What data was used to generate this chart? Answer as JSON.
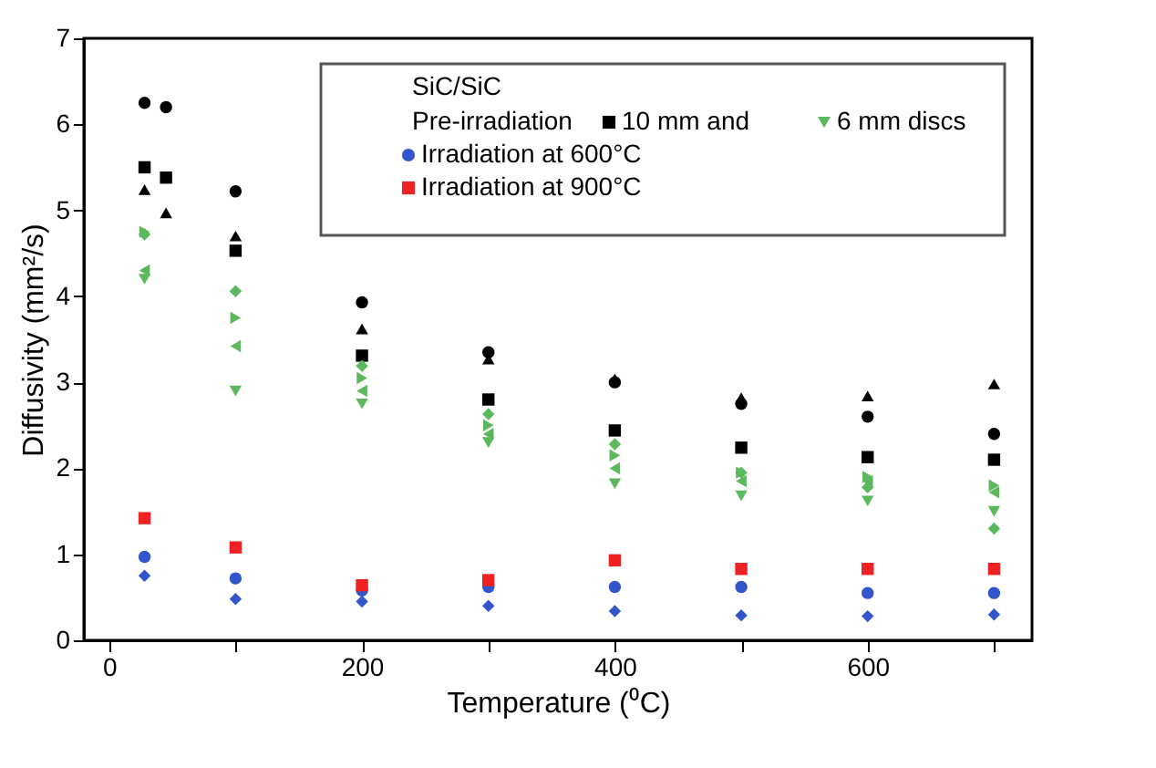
{
  "chart_data": {
    "type": "scatter",
    "legend_title": "SiC/SiC",
    "annotations": [
      "Pre-irradiation"
    ],
    "xlabel": "Temperature (⁰C)",
    "ylabel": "Diffusivity (mm²/s)",
    "xlim": [
      -20,
      730
    ],
    "ylim": [
      0,
      7
    ],
    "xticks": [
      0,
      {
        "value": 100,
        "label": null
      },
      200,
      {
        "value": 300,
        "label": null
      },
      400,
      {
        "value": 500,
        "label": null
      },
      600,
      {
        "value": 700,
        "label": null
      }
    ],
    "yticks": [
      0,
      1,
      2,
      3,
      4,
      5,
      6,
      7
    ],
    "grid": false,
    "legend": "top right",
    "series": [
      {
        "color": "#000000",
        "marker": "circle",
        "x": [
          28,
          45,
          100,
          200,
          300,
          400,
          500,
          600,
          700
        ],
        "values": [
          6.25,
          6.2,
          5.22,
          3.93,
          3.35,
          3.0,
          2.75,
          2.6,
          2.4
        ]
      },
      {
        "name": "10 mm and",
        "color": "#000000",
        "marker": "square",
        "x": [
          28,
          45,
          100,
          200,
          300,
          400,
          500,
          600,
          700
        ],
        "values": [
          5.5,
          5.38,
          4.53,
          3.31,
          2.8,
          2.44,
          2.24,
          2.13,
          2.1
        ]
      },
      {
        "color": "#000000",
        "marker": "triangle",
        "x": [
          28,
          45,
          100,
          200,
          300,
          400,
          500,
          600,
          700
        ],
        "values": [
          5.22,
          4.95,
          4.68,
          3.6,
          3.25,
          3.02,
          2.8,
          2.82,
          2.96
        ]
      },
      {
        "color": "#5cb85c",
        "marker": "diamond",
        "x": [
          28,
          100,
          200,
          300,
          400,
          500,
          600,
          700
        ],
        "values": [
          4.72,
          4.06,
          3.19,
          2.63,
          2.28,
          1.95,
          1.78,
          1.3
        ]
      },
      {
        "name": "6 mm discs",
        "color": "#5cb85c",
        "marker": "triangle-down",
        "x": [
          28,
          100,
          200,
          300,
          400,
          500,
          600,
          700
        ],
        "values": [
          4.2,
          2.9,
          2.75,
          2.3,
          1.82,
          1.68,
          1.62,
          1.5
        ]
      },
      {
        "color": "#5cb85c",
        "marker": "triangle-left",
        "x": [
          28,
          100,
          200,
          300,
          400,
          500,
          600,
          700
        ],
        "values": [
          4.3,
          3.42,
          2.9,
          2.4,
          2.0,
          1.85,
          1.85,
          1.72
        ]
      },
      {
        "color": "#5cb85c",
        "marker": "triangle-right",
        "x": [
          28,
          100,
          200,
          300,
          400,
          500,
          600,
          700
        ],
        "values": [
          4.75,
          3.75,
          3.05,
          2.5,
          2.15,
          1.95,
          1.9,
          1.8
        ]
      },
      {
        "name": "Irradiation at 600°C",
        "color": "#3355cc",
        "marker": "circle",
        "x": [
          28,
          100,
          200,
          300,
          400,
          500,
          600,
          700
        ],
        "values": [
          0.97,
          0.72,
          0.58,
          0.62,
          0.62,
          0.62,
          0.55,
          0.55
        ]
      },
      {
        "color": "#3355cc",
        "marker": "diamond",
        "x": [
          28,
          100,
          200,
          300,
          400,
          500,
          600,
          700
        ],
        "values": [
          0.75,
          0.48,
          0.45,
          0.4,
          0.34,
          0.29,
          0.28,
          0.3
        ]
      },
      {
        "name": "Irradiation at 900°C",
        "color": "#ee2222",
        "marker": "square",
        "x": [
          28,
          100,
          200,
          300,
          400,
          500,
          600,
          700
        ],
        "values": [
          1.42,
          1.08,
          0.64,
          0.7,
          0.93,
          0.83,
          0.83,
          0.83
        ]
      }
    ]
  }
}
